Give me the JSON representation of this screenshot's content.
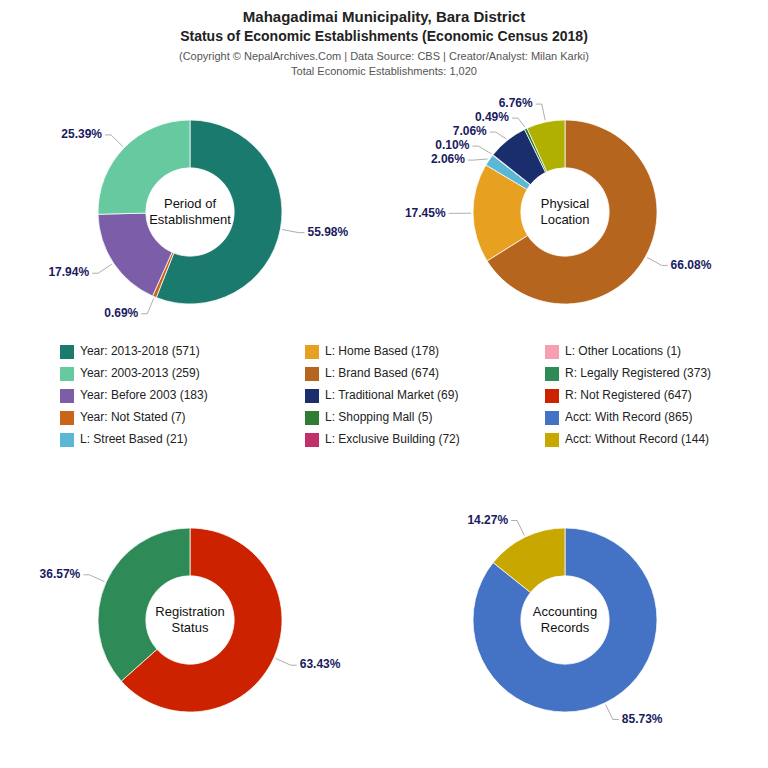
{
  "title": [
    "Mahagadimai Municipality, Bara District",
    "Status of Economic Establishments (Economic Census 2018)"
  ],
  "subtitle": [
    "(Copyright © NepalArchives.Com | Data Source: CBS | Creator/Analyst: Milan Karki)",
    "Total Economic Establishments: 1,020"
  ],
  "chart_data": [
    {
      "type": "pie",
      "title": "Period of\nEstablishment",
      "values": [
        55.98,
        0.69,
        17.94,
        25.39
      ],
      "value_labels": [
        "55.98%",
        "0.69%",
        "17.94%",
        "25.39%"
      ],
      "colors": [
        "#1a7a6e",
        "#c8651a",
        "#7b5ea7",
        "#66c9a0"
      ],
      "data_labels": true
    },
    {
      "type": "pie",
      "title": "Physical\nLocation",
      "values": [
        66.08,
        17.45,
        2.06,
        0.1,
        7.06,
        0.49,
        6.76
      ],
      "value_labels": [
        "66.08%",
        "17.45%",
        "2.06%",
        "0.10%",
        "7.06%",
        "0.49%",
        "6.76%"
      ],
      "colors": [
        "#b5651d",
        "#e8a020",
        "#5bb8d4",
        "#d87093",
        "#1a2e6e",
        "#2e7d32",
        "#b0b000"
      ],
      "data_labels": true
    },
    {
      "type": "pie",
      "title": "Registration\nStatus",
      "values": [
        63.43,
        36.57
      ],
      "value_labels": [
        "63.43%",
        "36.57%"
      ],
      "colors": [
        "#cc2200",
        "#2e8b57"
      ],
      "data_labels": true
    },
    {
      "type": "pie",
      "title": "Accounting\nRecords",
      "values": [
        85.73,
        14.27
      ],
      "value_labels": [
        "85.73%",
        "14.27%"
      ],
      "colors": [
        "#4472c4",
        "#c8a800"
      ],
      "data_labels": true
    }
  ],
  "legend_entries": [
    {
      "name": "Year: 2013-2018 (571)",
      "color": "#1a7a6e"
    },
    {
      "name": "Year: 2003-2013 (259)",
      "color": "#66c9a0"
    },
    {
      "name": "Year: Before 2003 (183)",
      "color": "#7b5ea7"
    },
    {
      "name": "Year: Not Stated (7)",
      "color": "#c8651a"
    },
    {
      "name": "L: Street Based (21)",
      "color": "#5bb8d4"
    },
    {
      "name": "L: Home Based (178)",
      "color": "#e8a020"
    },
    {
      "name": "L: Brand Based (674)",
      "color": "#b5651d"
    },
    {
      "name": "L: Traditional Market (69)",
      "color": "#1a2e6e"
    },
    {
      "name": "L: Shopping Mall (5)",
      "color": "#2e7d32"
    },
    {
      "name": "L: Exclusive Building (72)",
      "color": "#c0306a"
    },
    {
      "name": "L: Other Locations (1)",
      "color": "#f4a0b0"
    },
    {
      "name": "R: Legally Registered (373)",
      "color": "#2e8b57"
    },
    {
      "name": "R: Not Registered (647)",
      "color": "#cc2200"
    },
    {
      "name": "Acct: With Record (865)",
      "color": "#4472c4"
    },
    {
      "name": "Acct: Without Record (144)",
      "color": "#c8a800"
    }
  ]
}
